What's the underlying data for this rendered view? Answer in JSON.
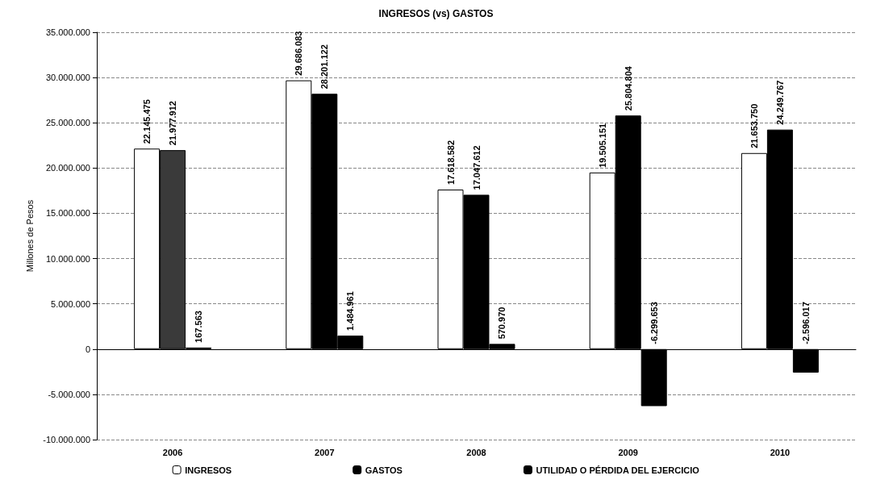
{
  "chart_data": {
    "type": "bar",
    "title": "INGRESOS (vs) GASTOS",
    "ylabel": "Millones de Pesos",
    "categories": [
      "2006",
      "2007",
      "2008",
      "2009",
      "2010"
    ],
    "series": [
      {
        "name": "INGRESOS",
        "color": "#ffffff",
        "values": [
          22145475,
          29686083,
          17618582,
          19505151,
          21653750
        ],
        "value_labels": [
          "22.145.475",
          "29.686.083",
          "17.618.582",
          "19.505.151",
          "21.653.750"
        ]
      },
      {
        "name": "GASTOS",
        "color": "#000000",
        "colors": [
          "#3a3a3a",
          "#000000",
          "#000000",
          "#000000",
          "#000000"
        ],
        "values": [
          21977912,
          28201122,
          17047612,
          25804804,
          24249767
        ],
        "value_labels": [
          "21.977.912",
          "28.201.122",
          "17.047.612",
          "25.804.804",
          "24.249.767"
        ]
      },
      {
        "name": "UTILIDAD O PÉRDIDA DEL EJERCICIO",
        "color": "#000000",
        "values": [
          167563,
          1484961,
          570970,
          -6299653,
          -2596017
        ],
        "value_labels": [
          "167.563",
          "1.484.961",
          "570.970",
          "-6.299.653",
          "-2.596.017"
        ]
      }
    ],
    "ylim": [
      -10000000,
      35000000
    ],
    "yticks": [
      {
        "value": -10000000,
        "label": "-10.000.000"
      },
      {
        "value": -5000000,
        "label": "-5.000.000"
      },
      {
        "value": 0,
        "label": "0"
      },
      {
        "value": 5000000,
        "label": "5.000.000"
      },
      {
        "value": 10000000,
        "label": "10.000.000"
      },
      {
        "value": 15000000,
        "label": "15.000.000"
      },
      {
        "value": 20000000,
        "label": "20.000.000"
      },
      {
        "value": 25000000,
        "label": "25.000.000"
      },
      {
        "value": 30000000,
        "label": "30.000.000"
      },
      {
        "value": 35000000,
        "label": "35.000.000"
      }
    ],
    "grid": "y",
    "legend": "bottom"
  }
}
